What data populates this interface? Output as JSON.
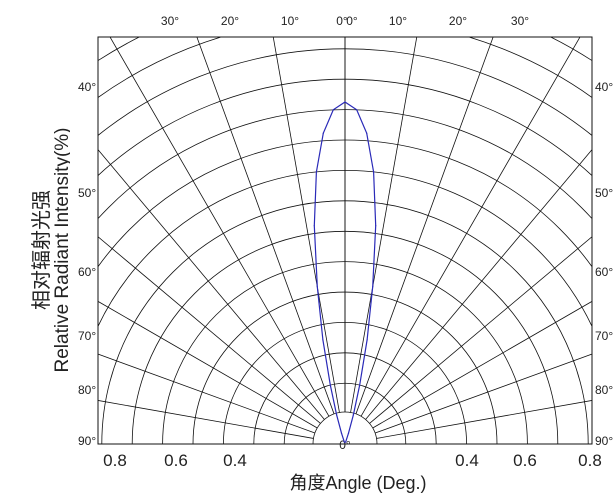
{
  "chart_data": {
    "type": "polar",
    "xlabel": "角度Angle (Deg.)",
    "ylabel_line1": "相对辐射光强",
    "ylabel_line2": "Relative  Radiant Intensity(%)",
    "top_angle_labels": [
      "30°",
      "20°",
      "10°",
      "0°",
      "0°",
      "10°",
      "20°",
      "30°"
    ],
    "side_angle_labels": [
      "40°",
      "50°",
      "60°",
      "70°",
      "80°",
      "90°"
    ],
    "center_label": "0°",
    "radius_labels": [
      "0.8",
      "0.6",
      "0.4",
      "0.4",
      "0.6",
      "0.8"
    ],
    "radial_max": 1.0,
    "grid": true,
    "series": [
      {
        "color": "#2a2ab8",
        "angles_deg": [
          -20,
          -18,
          -16,
          -14,
          -12,
          -10,
          -8,
          -6,
          -4,
          -2,
          0,
          2,
          4,
          6,
          8,
          10,
          12,
          14,
          16,
          18,
          20
        ],
        "values": [
          0.005,
          0.03,
          0.08,
          0.16,
          0.28,
          0.42,
          0.58,
          0.72,
          0.82,
          0.88,
          0.9,
          0.88,
          0.82,
          0.72,
          0.58,
          0.42,
          0.28,
          0.16,
          0.08,
          0.03,
          0.005
        ]
      }
    ]
  }
}
